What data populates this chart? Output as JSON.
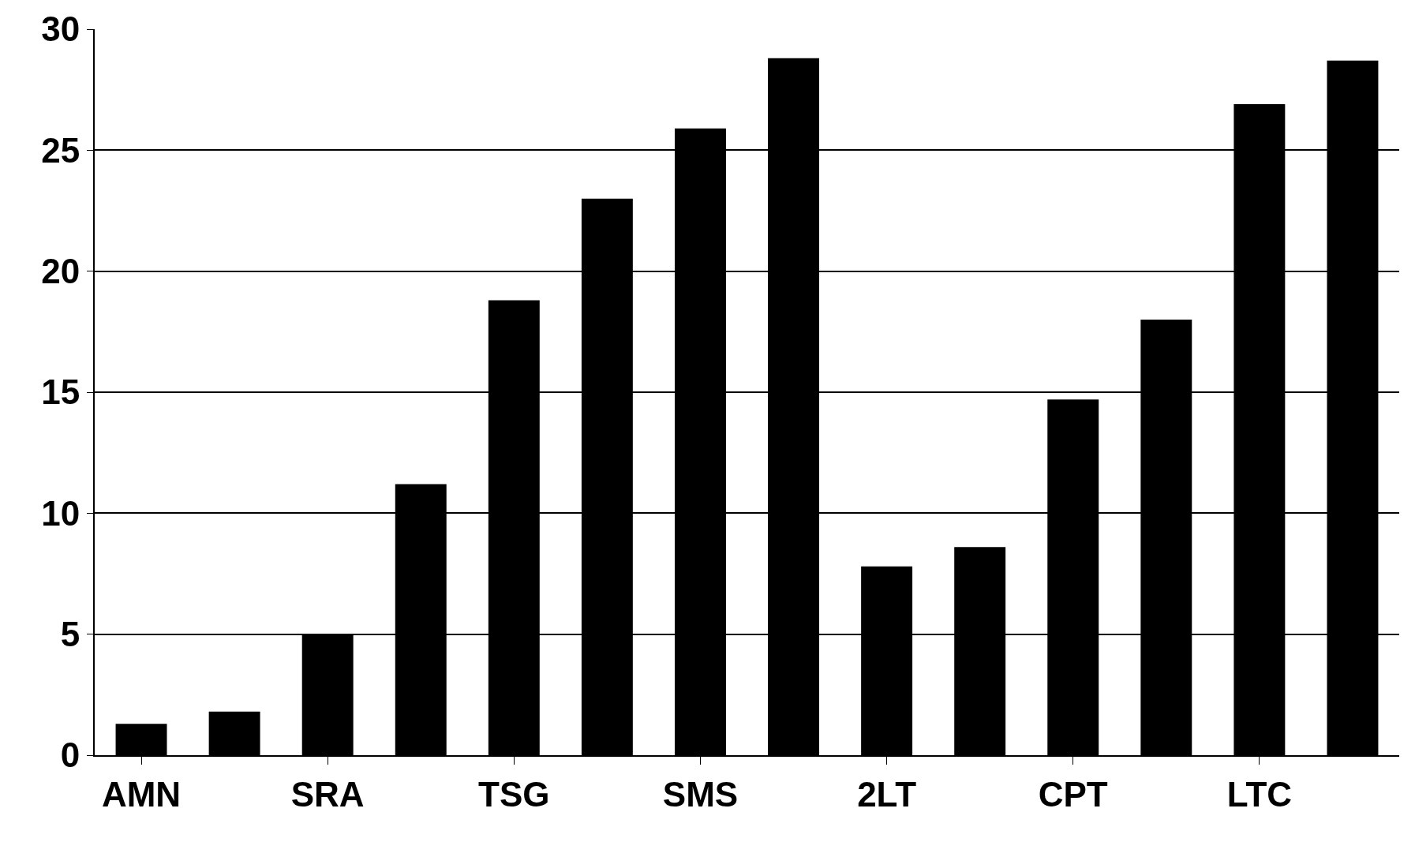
{
  "chart_data": {
    "type": "bar",
    "categories": [
      "AMN",
      null,
      "SRA",
      null,
      "TSG",
      null,
      "SMS",
      null,
      "2LT",
      null,
      "CPT",
      null,
      "LTC",
      null
    ],
    "values": [
      1.3,
      1.8,
      5.0,
      11.2,
      18.8,
      23.0,
      25.9,
      28.8,
      7.8,
      8.6,
      14.7,
      18.0,
      26.9,
      28.7
    ],
    "color": "#000000",
    "ylim": [
      0,
      30
    ],
    "yticks": [
      0,
      5,
      10,
      15,
      20,
      25,
      30
    ],
    "grid": "y"
  }
}
